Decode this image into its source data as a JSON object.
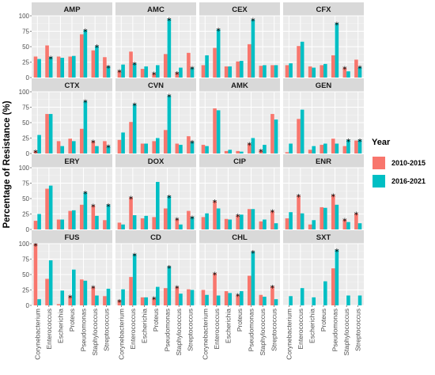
{
  "chart_data": {
    "type": "bar",
    "ylabel": "Percentage of Resistance (%)",
    "xlabel": "",
    "ylim": [
      0,
      100
    ],
    "yticks": [
      0,
      25,
      50,
      75,
      100
    ],
    "grid": true,
    "legend": {
      "title": "Year",
      "position": "right"
    },
    "categories": [
      "Corynebacterium",
      "Enterococcus",
      "Escherichia",
      "Proteus",
      "Pseudomonas",
      "Staphylococcus",
      "Streptococcus"
    ],
    "series": [
      {
        "name": "2010-2015",
        "color": "#F8766D"
      },
      {
        "name": "2016-2021",
        "color": "#00BFC4"
      }
    ],
    "panels": [
      {
        "title": "AMP",
        "v1": [
          34,
          52,
          34,
          34,
          70,
          44,
          33
        ],
        "v2": [
          30,
          33,
          32,
          35,
          77,
          51,
          18
        ],
        "stars": [
          null,
          1,
          null,
          null,
          1,
          1,
          1
        ]
      },
      {
        "title": "AMC",
        "v1": [
          11,
          42,
          14,
          7,
          38,
          8,
          40
        ],
        "v2": [
          21,
          23,
          18,
          20,
          95,
          16,
          16
        ],
        "stars": [
          0,
          1,
          null,
          0,
          1,
          0,
          1
        ]
      },
      {
        "title": "CEX",
        "v1": [
          20,
          48,
          18,
          26,
          54,
          19,
          20
        ],
        "v2": [
          36,
          78,
          18,
          27,
          94,
          20,
          20
        ],
        "stars": [
          null,
          1,
          null,
          null,
          1,
          null,
          null
        ]
      },
      {
        "title": "CFX",
        "v1": [
          20,
          51,
          18,
          20,
          36,
          16,
          29
        ],
        "v2": [
          23,
          58,
          16,
          22,
          88,
          10,
          17
        ],
        "stars": [
          null,
          null,
          null,
          null,
          1,
          0,
          1
        ]
      },
      {
        "title": "CTX",
        "v1": [
          4,
          64,
          20,
          24,
          40,
          20,
          20
        ],
        "v2": [
          30,
          64,
          12,
          20,
          85,
          12,
          12
        ],
        "stars": [
          0,
          null,
          null,
          null,
          1,
          0,
          1
        ]
      },
      {
        "title": "CVN",
        "v1": [
          22,
          51,
          16,
          20,
          38,
          16,
          28
        ],
        "v2": [
          34,
          80,
          16,
          25,
          94,
          14,
          19
        ],
        "stars": [
          null,
          1,
          null,
          null,
          1,
          null,
          1
        ]
      },
      {
        "title": "AMK",
        "v1": [
          14,
          73,
          4,
          4,
          16,
          5,
          64
        ],
        "v2": [
          12,
          70,
          6,
          3,
          25,
          14,
          55
        ],
        "stars": [
          null,
          null,
          null,
          null,
          0,
          0,
          null
        ]
      },
      {
        "title": "GEN",
        "v1": [
          2,
          56,
          6,
          14,
          24,
          12,
          21
        ],
        "v2": [
          16,
          71,
          12,
          16,
          16,
          22,
          22
        ],
        "stars": [
          null,
          null,
          null,
          null,
          null,
          1,
          1
        ]
      },
      {
        "title": "ERY",
        "v1": [
          14,
          66,
          16,
          30,
          40,
          39,
          15
        ],
        "v2": [
          25,
          71,
          16,
          31,
          60,
          22,
          40
        ],
        "stars": [
          null,
          null,
          null,
          null,
          1,
          0,
          1
        ]
      },
      {
        "title": "DOX",
        "v1": [
          11,
          52,
          18,
          20,
          34,
          17,
          30
        ],
        "v2": [
          8,
          23,
          22,
          77,
          54,
          8,
          20
        ],
        "stars": [
          null,
          0,
          null,
          null,
          1,
          0,
          1
        ]
      },
      {
        "title": "CIP",
        "v1": [
          20,
          46,
          17,
          23,
          33,
          13,
          30
        ],
        "v2": [
          26,
          34,
          16,
          24,
          33,
          16,
          10
        ],
        "stars": [
          null,
          0,
          null,
          0,
          null,
          null,
          0
        ]
      },
      {
        "title": "ENR",
        "v1": [
          18,
          55,
          8,
          36,
          56,
          16,
          26
        ],
        "v2": [
          28,
          26,
          15,
          35,
          40,
          12,
          10
        ],
        "stars": [
          null,
          0,
          null,
          null,
          0,
          0,
          0
        ]
      },
      {
        "title": "FUS",
        "v1": [
          100,
          43,
          2,
          15,
          42,
          30,
          15
        ],
        "v2": [
          10,
          73,
          24,
          58,
          40,
          16,
          27
        ],
        "stars": [
          0,
          null,
          null,
          0,
          null,
          0,
          null
        ]
      },
      {
        "title": "CD",
        "v1": [
          8,
          46,
          13,
          12,
          28,
          30,
          26
        ],
        "v2": [
          26,
          83,
          13,
          30,
          63,
          19,
          25
        ],
        "stars": [
          0,
          1,
          null,
          0,
          1,
          0,
          null
        ]
      },
      {
        "title": "CHL",
        "v1": [
          25,
          52,
          23,
          17,
          48,
          17,
          31
        ],
        "v2": [
          17,
          16,
          20,
          23,
          87,
          14,
          10
        ],
        "stars": [
          null,
          0,
          null,
          0,
          1,
          null,
          0
        ]
      },
      {
        "title": "SXT",
        "v1": [
          null,
          null,
          null,
          null,
          60,
          null,
          null
        ],
        "v2": [
          15,
          28,
          13,
          39,
          90,
          16,
          16
        ],
        "stars": [
          null,
          null,
          null,
          null,
          1,
          null,
          null
        ]
      }
    ]
  }
}
